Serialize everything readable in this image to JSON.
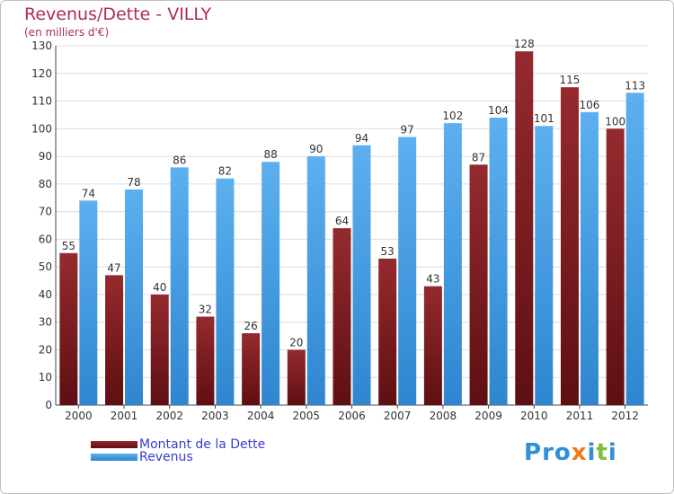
{
  "chart_data": {
    "type": "bar",
    "title": "Revenus/Dette - VILLY",
    "subtitle": "(en milliers d'€)",
    "categories": [
      "2000",
      "2001",
      "2002",
      "2003",
      "2004",
      "2005",
      "2006",
      "2007",
      "2008",
      "2009",
      "2010",
      "2011",
      "2012"
    ],
    "series": [
      {
        "name": "Montant de la Dette",
        "color": "#7a1a1c",
        "values": [
          55,
          47,
          40,
          32,
          26,
          20,
          64,
          53,
          43,
          87,
          128,
          115,
          100
        ]
      },
      {
        "name": "Revenus",
        "color": "#3e97de",
        "values": [
          74,
          78,
          86,
          82,
          88,
          90,
          94,
          97,
          102,
          104,
          101,
          106,
          113
        ]
      }
    ],
    "ylim": [
      0,
      130
    ],
    "yticks": [
      0,
      10,
      20,
      30,
      40,
      50,
      60,
      70,
      80,
      90,
      100,
      110,
      120,
      130
    ],
    "grid": true,
    "legend_position": "bottom-left",
    "xlabel": "",
    "ylabel": ""
  },
  "logo": {
    "text": "Proxiti",
    "letter_colors": [
      "#2f8fd8",
      "#2f8fd8",
      "#2f8fd8",
      "#f07c16",
      "#2f8fd8",
      "#7fbf3a",
      "#2f8fd8"
    ]
  }
}
